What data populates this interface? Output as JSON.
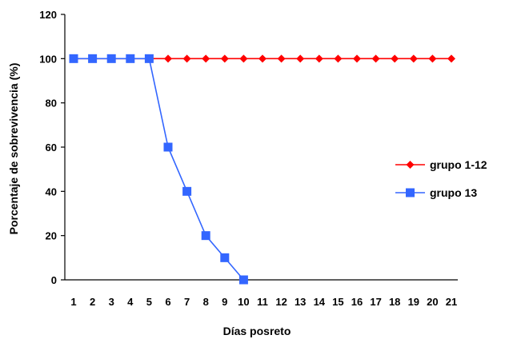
{
  "chart_data": {
    "type": "line",
    "xlabel": "Días posreto",
    "ylabel": "Porcentaje de sobrevivencia (%)",
    "x": [
      1,
      2,
      3,
      4,
      5,
      6,
      7,
      8,
      9,
      10,
      11,
      12,
      13,
      14,
      15,
      16,
      17,
      18,
      19,
      20,
      21
    ],
    "xticks": [
      "1",
      "2",
      "3",
      "4",
      "5",
      "6",
      "7",
      "8",
      "9",
      "10",
      "11",
      "12",
      "13",
      "14",
      "15",
      "16",
      "17",
      "18",
      "19",
      "20",
      "21"
    ],
    "yticks": [
      "0",
      "20",
      "40",
      "60",
      "80",
      "100",
      "120"
    ],
    "ylim": [
      0,
      120
    ],
    "grid": false,
    "legend_position": "right",
    "series": [
      {
        "name": "grupo 1-12",
        "color": "#ff0000",
        "marker": "diamond",
        "x": [
          1,
          2,
          3,
          4,
          5,
          6,
          7,
          8,
          9,
          10,
          11,
          12,
          13,
          14,
          15,
          16,
          17,
          18,
          19,
          20,
          21
        ],
        "values": [
          100,
          100,
          100,
          100,
          100,
          100,
          100,
          100,
          100,
          100,
          100,
          100,
          100,
          100,
          100,
          100,
          100,
          100,
          100,
          100,
          100
        ]
      },
      {
        "name": "grupo 13",
        "color": "#3366ff",
        "marker": "square",
        "x": [
          1,
          2,
          3,
          4,
          5,
          6,
          7,
          8,
          9,
          10
        ],
        "values": [
          100,
          100,
          100,
          100,
          100,
          60,
          40,
          20,
          10,
          0
        ]
      }
    ]
  }
}
